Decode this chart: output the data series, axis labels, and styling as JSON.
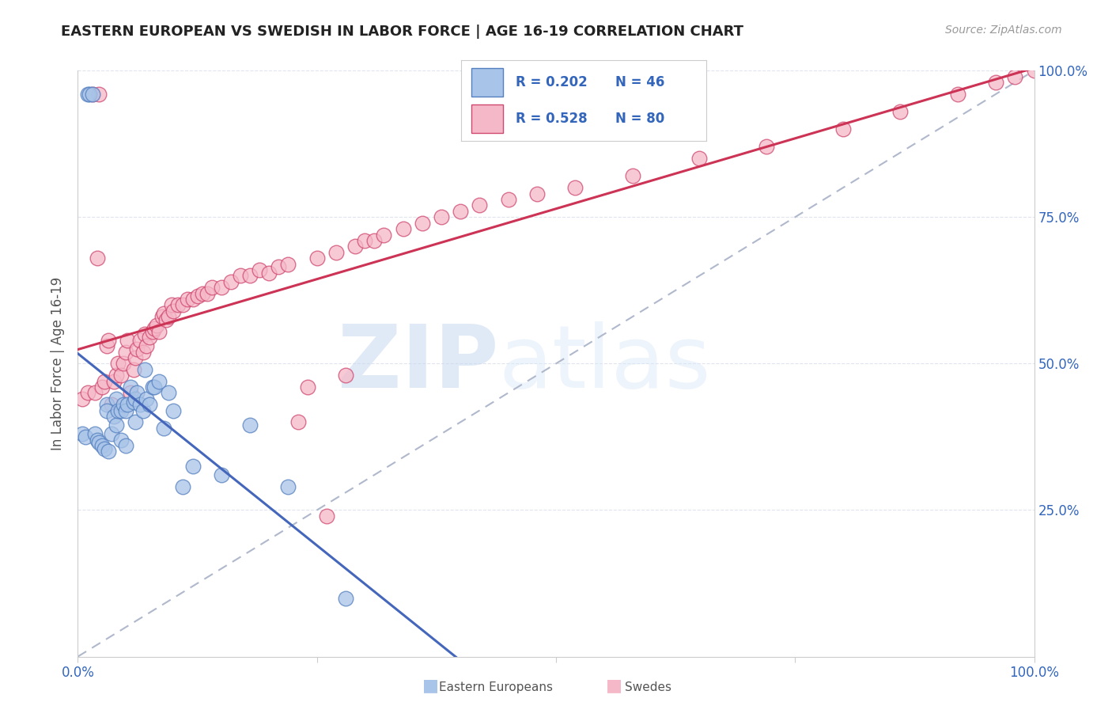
{
  "title": "EASTERN EUROPEAN VS SWEDISH IN LABOR FORCE | AGE 16-19 CORRELATION CHART",
  "source": "Source: ZipAtlas.com",
  "ylabel": "In Labor Force | Age 16-19",
  "xlim": [
    0,
    1
  ],
  "ylim": [
    0,
    1
  ],
  "watermark_zip": "ZIP",
  "watermark_atlas": "atlas",
  "blue_fill": "#a8c4e8",
  "blue_edge": "#5580c0",
  "pink_fill": "#f5b8c8",
  "pink_edge": "#d04870",
  "blue_line": "#4466bb",
  "pink_line": "#cc3355",
  "dash_color": "#b0b8cc",
  "grid_color": "#e0e4ee",
  "right_label_color": "#3366bb",
  "title_color": "#222222",
  "source_color": "#999999",
  "ee_x": [
    0.005,
    0.008,
    0.01,
    0.012,
    0.015,
    0.018,
    0.02,
    0.022,
    0.025,
    0.028,
    0.03,
    0.03,
    0.032,
    0.035,
    0.038,
    0.04,
    0.04,
    0.042,
    0.045,
    0.045,
    0.048,
    0.05,
    0.05,
    0.052,
    0.055,
    0.058,
    0.06,
    0.06,
    0.062,
    0.065,
    0.068,
    0.07,
    0.072,
    0.075,
    0.078,
    0.08,
    0.085,
    0.09,
    0.095,
    0.1,
    0.11,
    0.12,
    0.15,
    0.18,
    0.22,
    0.28
  ],
  "ee_y": [
    0.38,
    0.375,
    0.96,
    0.96,
    0.96,
    0.38,
    0.37,
    0.365,
    0.36,
    0.355,
    0.43,
    0.42,
    0.35,
    0.38,
    0.41,
    0.395,
    0.44,
    0.42,
    0.37,
    0.42,
    0.43,
    0.42,
    0.36,
    0.43,
    0.46,
    0.435,
    0.44,
    0.4,
    0.45,
    0.43,
    0.42,
    0.49,
    0.44,
    0.43,
    0.46,
    0.46,
    0.47,
    0.39,
    0.45,
    0.42,
    0.29,
    0.325,
    0.31,
    0.395,
    0.29,
    0.1
  ],
  "sw_x": [
    0.005,
    0.01,
    0.015,
    0.018,
    0.02,
    0.022,
    0.025,
    0.028,
    0.03,
    0.032,
    0.035,
    0.038,
    0.04,
    0.042,
    0.045,
    0.048,
    0.05,
    0.052,
    0.055,
    0.058,
    0.06,
    0.062,
    0.065,
    0.068,
    0.07,
    0.072,
    0.075,
    0.078,
    0.08,
    0.082,
    0.085,
    0.088,
    0.09,
    0.092,
    0.095,
    0.098,
    0.1,
    0.105,
    0.11,
    0.115,
    0.12,
    0.125,
    0.13,
    0.135,
    0.14,
    0.15,
    0.16,
    0.17,
    0.18,
    0.19,
    0.2,
    0.21,
    0.22,
    0.23,
    0.24,
    0.25,
    0.26,
    0.27,
    0.28,
    0.29,
    0.3,
    0.31,
    0.32,
    0.34,
    0.36,
    0.38,
    0.4,
    0.42,
    0.45,
    0.48,
    0.52,
    0.58,
    0.65,
    0.72,
    0.8,
    0.86,
    0.92,
    0.96,
    0.98,
    1.0
  ],
  "sw_y": [
    0.44,
    0.45,
    0.96,
    0.45,
    0.68,
    0.96,
    0.46,
    0.47,
    0.53,
    0.54,
    0.43,
    0.47,
    0.48,
    0.5,
    0.48,
    0.5,
    0.52,
    0.54,
    0.45,
    0.49,
    0.51,
    0.525,
    0.54,
    0.52,
    0.55,
    0.53,
    0.545,
    0.555,
    0.56,
    0.565,
    0.555,
    0.58,
    0.585,
    0.575,
    0.58,
    0.6,
    0.59,
    0.6,
    0.6,
    0.61,
    0.61,
    0.615,
    0.62,
    0.62,
    0.63,
    0.63,
    0.64,
    0.65,
    0.65,
    0.66,
    0.655,
    0.665,
    0.67,
    0.4,
    0.46,
    0.68,
    0.24,
    0.69,
    0.48,
    0.7,
    0.71,
    0.71,
    0.72,
    0.73,
    0.74,
    0.75,
    0.76,
    0.77,
    0.78,
    0.79,
    0.8,
    0.82,
    0.85,
    0.87,
    0.9,
    0.93,
    0.96,
    0.98,
    0.99,
    1.0
  ]
}
